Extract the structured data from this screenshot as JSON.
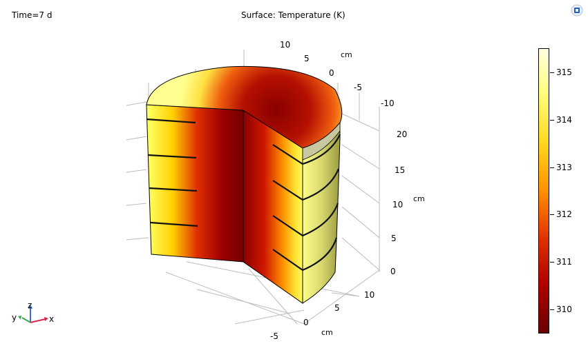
{
  "header": {
    "time_label": "Time=7 d",
    "plot_title": "Surface: Temperature (K)"
  },
  "colorbar": {
    "min": 309.5,
    "max": 315.5,
    "ticks": [
      "310",
      "311",
      "312",
      "313",
      "314",
      "315"
    ],
    "tick_values": [
      310,
      311,
      312,
      313,
      314,
      315
    ],
    "colors": [
      "#6a0000",
      "#b00000",
      "#e03000",
      "#ff9000",
      "#ffd820",
      "#ffff80",
      "#ffffe0"
    ]
  },
  "axes": {
    "y_ticks": [
      "10",
      "5",
      "0",
      "-5",
      "-10"
    ],
    "y_unit": "cm",
    "z_ticks": [
      "20",
      "15",
      "10",
      "5",
      "0"
    ],
    "z_unit": "cm",
    "x_ticks": [
      "10",
      "5",
      "0",
      "-5"
    ],
    "x_unit": "cm"
  },
  "triad": {
    "z": "z",
    "y": "y",
    "x": "x",
    "z_color": "#3b6fd6",
    "y_color": "#3aa84a",
    "x_color": "#d02850"
  }
}
